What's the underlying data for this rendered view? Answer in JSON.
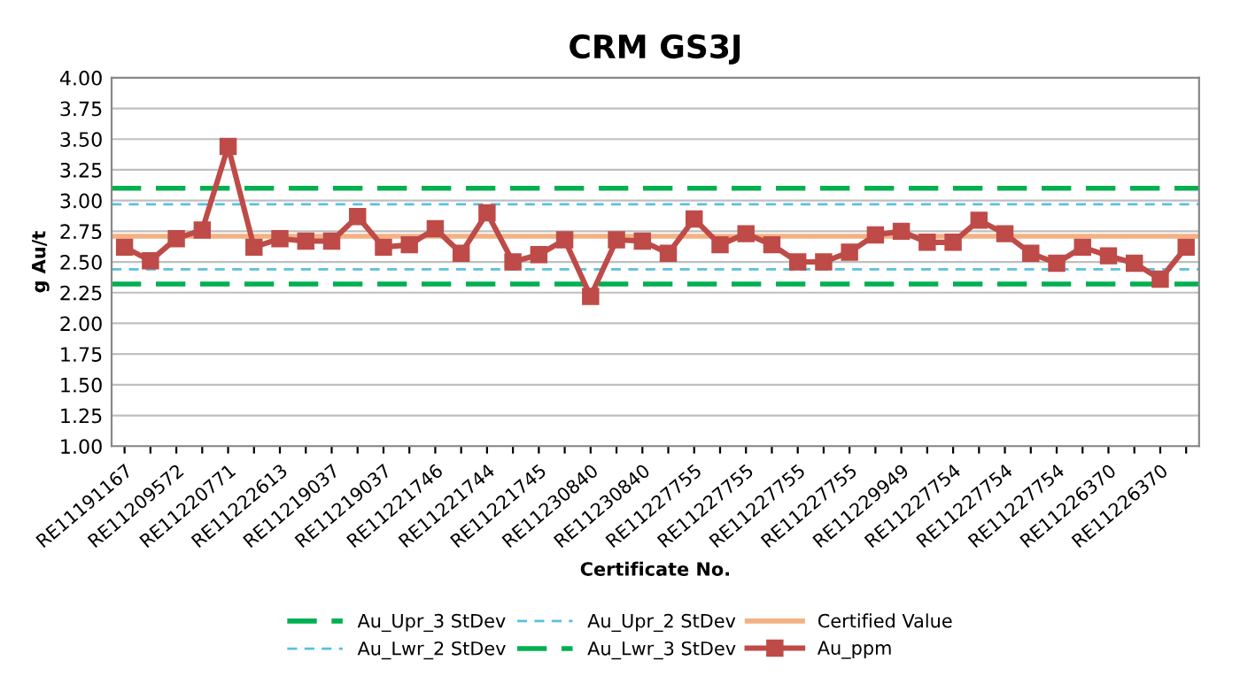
{
  "chart_data": {
    "type": "line",
    "title": "CRM GS3J",
    "xlabel": "Certificate No.",
    "ylabel": "g Au/t",
    "categories": [
      "RE11191167",
      null,
      "RE11209572",
      null,
      "RE11220771",
      null,
      "RE11222613",
      null,
      "RE11219037",
      null,
      "RE11219037",
      null,
      "RE11221746",
      null,
      "RE11221744",
      null,
      "RE11221745",
      null,
      "RE11230840",
      null,
      "RE11230840",
      null,
      "RE11227755",
      null,
      "RE11227755",
      null,
      "RE11227755",
      null,
      "RE11227755",
      null,
      "RE11229949",
      null,
      "RE11227754",
      null,
      "RE11227754",
      null,
      "RE11227754",
      null,
      "RE11226370",
      null,
      "RE11226370",
      null
    ],
    "series": [
      {
        "name": "Au_ppm",
        "color": "#be4b48",
        "values": [
          2.62,
          2.51,
          2.69,
          2.76,
          3.44,
          2.62,
          2.69,
          2.67,
          2.67,
          2.87,
          2.62,
          2.64,
          2.77,
          2.57,
          2.9,
          2.5,
          2.56,
          2.68,
          2.22,
          2.68,
          2.67,
          2.57,
          2.85,
          2.64,
          2.73,
          2.64,
          2.5,
          2.5,
          2.58,
          2.72,
          2.75,
          2.66,
          2.66,
          2.84,
          2.73,
          2.57,
          2.49,
          2.62,
          2.55,
          2.49,
          2.36,
          2.62
        ]
      }
    ],
    "ref_lines": [
      {
        "axis": "y",
        "value": 3.1,
        "label": "Au_Upr_3 StDev",
        "color": "#00b050",
        "line_style": "dashed"
      },
      {
        "axis": "y",
        "value": 2.97,
        "label": "Au_Upr_2 StDev",
        "color": "#5bc0de",
        "line_style": "dashed"
      },
      {
        "axis": "y",
        "value": 2.71,
        "label": "Certified Value",
        "color": "#f4b183",
        "line_style": "solid"
      },
      {
        "axis": "y",
        "value": 2.44,
        "label": "Au_Lwr_2 StDev",
        "color": "#5bc0de",
        "line_style": "dashed"
      },
      {
        "axis": "y",
        "value": 2.32,
        "label": "Au_Lwr_3 StDev",
        "color": "#00b050",
        "line_style": "dashed"
      }
    ],
    "ylim": [
      1.0,
      4.0
    ],
    "yticks": [
      {
        "value": 1.0,
        "label": "1.00"
      },
      {
        "value": 1.25,
        "label": "1.25"
      },
      {
        "value": 1.5,
        "label": "1.50"
      },
      {
        "value": 1.75,
        "label": "1.75"
      },
      {
        "value": 2.0,
        "label": "2.00"
      },
      {
        "value": 2.25,
        "label": "2.25"
      },
      {
        "value": 2.5,
        "label": "2.50"
      },
      {
        "value": 2.75,
        "label": "2.75"
      },
      {
        "value": 3.0,
        "label": "3.00"
      },
      {
        "value": 3.25,
        "label": "3.25"
      },
      {
        "value": 3.5,
        "label": "3.50"
      },
      {
        "value": 3.75,
        "label": "3.75"
      },
      {
        "value": 4.0,
        "label": "4.00"
      }
    ],
    "grid": "y",
    "legend": "bottom",
    "marker": "square",
    "line_style": "solid"
  }
}
